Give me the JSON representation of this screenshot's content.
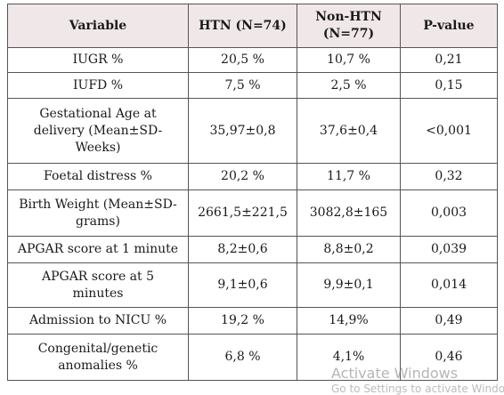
{
  "table": {
    "headers": [
      "Variable",
      "HTN (N=74)",
      "Non-HTN (N=77)",
      "P-value"
    ],
    "rows": [
      [
        "IUGR %",
        "20,5 %",
        "10,7 %",
        "0,21"
      ],
      [
        "IUFD %",
        "7,5 %",
        "2,5 %",
        "0,15"
      ],
      [
        "Gestational Age at delivery (Mean±SD-Weeks)",
        "35,97±0,8",
        "37,6±0,4",
        "<0,001"
      ],
      [
        "Foetal distress %",
        "20,2 %",
        "11,7 %",
        "0,32"
      ],
      [
        "Birth Weight (Mean±SD-grams)",
        "2661,5±221,5",
        "3082,8±165",
        "0,003"
      ],
      [
        "APGAR score at 1 minute",
        "8,2±0,6",
        "8,8±0,2",
        "0,039"
      ],
      [
        "APGAR score at 5 minutes",
        "9,1±0,6",
        "9,9±0,1",
        "0,014"
      ],
      [
        "Admission to NICU %",
        "19,2 %",
        "14,9%",
        "0,49"
      ],
      [
        "Congenital/genetic anomalies %",
        "6,8 %",
        "4,1%",
        "0,46"
      ]
    ]
  },
  "watermark": {
    "title": "Activate Windows",
    "subtitle": "Go to Settings to activate Windows."
  },
  "colors": {
    "header_background": "#f0e7e8",
    "border": "#555555"
  }
}
